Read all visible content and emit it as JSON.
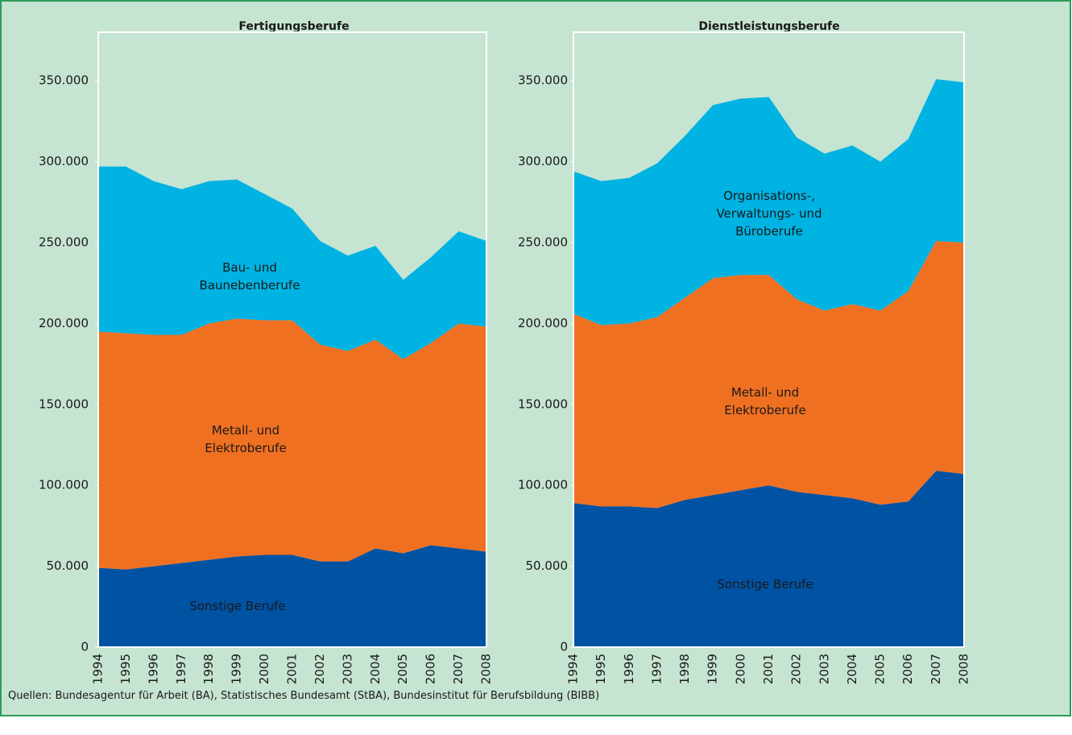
{
  "chart_data": [
    {
      "type": "area",
      "stacked": true,
      "title": "Fertigungsberufe",
      "categories": [
        "1994",
        "1995",
        "1996",
        "1997",
        "1998",
        "1999",
        "2000",
        "2001",
        "2002",
        "2003",
        "2004",
        "2005",
        "2006",
        "2007",
        "2008"
      ],
      "series": [
        {
          "name": "Sonstige Berufe",
          "color": "#0052a3",
          "values": [
            49000,
            48000,
            50000,
            52000,
            54000,
            56000,
            57000,
            57000,
            53000,
            53000,
            61000,
            58000,
            63000,
            61000,
            59000
          ]
        },
        {
          "name": "Metall- und Elektroberufe",
          "color": "#f07022",
          "values": [
            146000,
            146000,
            143000,
            141000,
            146000,
            147000,
            145000,
            145000,
            134000,
            130000,
            129000,
            120000,
            125000,
            139000,
            139000
          ]
        },
        {
          "name": "Bau- und Baunebenberufe",
          "color": "#00b3e3",
          "values": [
            102000,
            103000,
            95000,
            90000,
            88000,
            86000,
            78000,
            69000,
            64000,
            59000,
            58000,
            49000,
            53000,
            57000,
            53000
          ]
        }
      ],
      "ylim": [
        0,
        380000
      ],
      "yticks": [
        0,
        {
          "value": 50000,
          "label": "50.000"
        },
        {
          "value": 100000,
          "label": "100.000"
        },
        {
          "value": 150000,
          "label": "150.000"
        },
        {
          "value": 200000,
          "label": "200.000"
        },
        {
          "value": 250000,
          "label": "250.000"
        },
        {
          "value": 300000,
          "label": "300.000"
        },
        {
          "value": 350000,
          "label": "350.000"
        }
      ]
    },
    {
      "type": "area",
      "stacked": true,
      "title": "Dienstleistungsberufe",
      "categories": [
        "1994",
        "1995",
        "1996",
        "1997",
        "1998",
        "1999",
        "2000",
        "2001",
        "2002",
        "2003",
        "2004",
        "2005",
        "2006",
        "2007",
        "2008"
      ],
      "series": [
        {
          "name": "Sonstige Berufe",
          "color": "#0052a3",
          "values": [
            89000,
            87000,
            87000,
            86000,
            91000,
            94000,
            97000,
            100000,
            96000,
            94000,
            92000,
            88000,
            90000,
            109000,
            107000
          ]
        },
        {
          "name": "Metall- und Elektroberufe",
          "color": "#f07022",
          "values": [
            117000,
            112000,
            113000,
            118000,
            125000,
            134000,
            133000,
            130000,
            119000,
            114000,
            120000,
            120000,
            130000,
            142000,
            143000
          ]
        },
        {
          "name": "Organisations-, Verwaltungs- und Büroberufe",
          "color": "#00b3e3",
          "values": [
            88000,
            89000,
            90000,
            95000,
            100000,
            107000,
            109000,
            110000,
            100000,
            97000,
            98000,
            92000,
            94000,
            100000,
            99000
          ]
        }
      ],
      "ylim": [
        0,
        380000
      ],
      "yticks": [
        0,
        {
          "value": 50000,
          "label": "50.000"
        },
        {
          "value": 100000,
          "label": "100.000"
        },
        {
          "value": 150000,
          "label": "150.000"
        },
        {
          "value": 200000,
          "label": "200.000"
        },
        {
          "value": 250000,
          "label": "250.000"
        },
        {
          "value": 300000,
          "label": "300.000"
        },
        {
          "value": 350000,
          "label": "350.000"
        }
      ]
    }
  ],
  "source": "Quellen: Bundesagentur für Arbeit (BA), Statistisches Bundesamt (StBA), Bundesinstitut für Berufsbildung (BIBB)"
}
